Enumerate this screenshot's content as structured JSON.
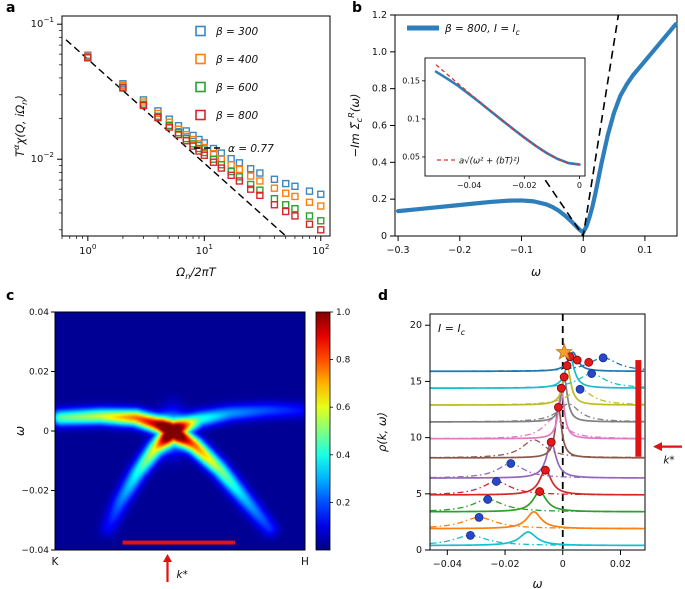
{
  "panel_labels": {
    "a": "a",
    "b": "b",
    "c": "c",
    "d": "d"
  },
  "chart_data": [
    {
      "id": "a",
      "type": "scatter",
      "xscale": "log",
      "yscale": "log",
      "xlim": [
        0.6,
        120
      ],
      "ylim": [
        0.0027,
        0.115
      ],
      "xtick_exponents": [
        0,
        1,
        2
      ],
      "ytick_exponents": [
        -1,
        -2
      ],
      "xlabel_parts": [
        {
          "t": "Ω"
        },
        {
          "t": "n",
          "sub": 1
        },
        {
          "t": "/2πT"
        }
      ],
      "ylabel_parts": [
        {
          "t": "T"
        },
        {
          "t": "α",
          "sup": 1
        },
        {
          "t": "χ(Q, iΩ"
        },
        {
          "t": "n",
          "sub": 1
        },
        {
          "t": ")"
        }
      ],
      "x": [
        1,
        2,
        3,
        4,
        5,
        6,
        7,
        8,
        9,
        10,
        12,
        14,
        17,
        20,
        25,
        30,
        40,
        50,
        60,
        80,
        100
      ],
      "series": [
        {
          "name": "β = 300",
          "color": "#3a87c2",
          "marker": "square-open",
          "values": [
            0.0589,
            0.0362,
            0.0275,
            0.0228,
            0.0198,
            0.0177,
            0.0162,
            0.015,
            0.014,
            0.0132,
            0.012,
            0.0111,
            0.0101,
            0.0094,
            0.0085,
            0.0079,
            0.0071,
            0.0066,
            0.0063,
            0.0058,
            0.0055
          ]
        },
        {
          "name": "β = 400",
          "color": "#ff7f0e",
          "marker": "square-open",
          "values": [
            0.0579,
            0.0352,
            0.0265,
            0.0218,
            0.0188,
            0.0167,
            0.0152,
            0.014,
            0.013,
            0.0122,
            0.011,
            0.0101,
            0.0091,
            0.0084,
            0.0075,
            0.0069,
            0.0061,
            0.0056,
            0.0053,
            0.0048,
            0.0045
          ]
        },
        {
          "name": "β = 600",
          "color": "#2ca02c",
          "marker": "square-open",
          "values": [
            0.0569,
            0.0342,
            0.0255,
            0.0208,
            0.0178,
            0.0157,
            0.0142,
            0.013,
            0.012,
            0.0112,
            0.01,
            0.0091,
            0.0081,
            0.0074,
            0.0065,
            0.0059,
            0.0051,
            0.0046,
            0.0043,
            0.0038,
            0.0035
          ]
        },
        {
          "name": "β = 800",
          "color": "#d62728",
          "marker": "square-open",
          "values": [
            0.0564,
            0.0337,
            0.025,
            0.0203,
            0.0173,
            0.0152,
            0.0137,
            0.0125,
            0.0115,
            0.0107,
            0.0095,
            0.0086,
            0.0076,
            0.0069,
            0.006,
            0.0054,
            0.0046,
            0.0041,
            0.0038,
            0.0033,
            0.003
          ]
        }
      ],
      "fit": {
        "label": "α = 0.77",
        "color": "#000000",
        "amplitude": 0.055,
        "exponent": -0.77,
        "x_range": [
          0.65,
          90
        ]
      }
    },
    {
      "id": "b",
      "type": "line",
      "xlim": [
        -0.305,
        0.152
      ],
      "ylim": [
        0,
        1.2
      ],
      "xticks": [
        -0.3,
        -0.2,
        -0.1,
        0,
        0.1
      ],
      "xtick_labels": [
        "−0.3",
        "−0.2",
        "−0.1",
        "0",
        "0.1"
      ],
      "yticks": [
        0,
        0.2,
        0.4,
        0.6,
        0.8,
        1.0,
        1.2
      ],
      "ytick_labels": [
        "0",
        "0.2",
        "0.4",
        "0.6",
        "0.8",
        "1.0",
        "1.2"
      ],
      "xlabel_parts": [
        {
          "t": "ω"
        }
      ],
      "ylabel_parts": [
        {
          "t": "−Im Σ̃"
        },
        {
          "t": "c",
          "sub": 1
        },
        {
          "t": "R",
          "sup": 1
        },
        {
          "t": "(ω)"
        }
      ],
      "legend_parts": [
        {
          "t": "β = 800, I = I"
        },
        {
          "t": "c",
          "sub": 1
        }
      ],
      "main_color": "#2e7ebc",
      "main": {
        "x": [
          -0.3,
          -0.27,
          -0.24,
          -0.21,
          -0.18,
          -0.15,
          -0.12,
          -0.1,
          -0.08,
          -0.06,
          -0.05,
          -0.04,
          -0.03,
          -0.02,
          -0.015,
          -0.01,
          -0.005,
          0,
          0.005,
          0.01,
          0.015,
          0.02,
          0.03,
          0.04,
          0.05,
          0.06,
          0.07,
          0.08,
          0.1,
          0.12,
          0.14,
          0.15
        ],
        "y": [
          0.135,
          0.145,
          0.155,
          0.165,
          0.175,
          0.185,
          0.192,
          0.193,
          0.188,
          0.172,
          0.158,
          0.138,
          0.112,
          0.082,
          0.065,
          0.048,
          0.032,
          0.02,
          0.05,
          0.1,
          0.16,
          0.235,
          0.4,
          0.55,
          0.67,
          0.76,
          0.82,
          0.87,
          0.95,
          1.03,
          1.11,
          1.15
        ]
      },
      "dashed": {
        "color": "#000000",
        "x": [
          -0.085,
          0,
          0.057
        ],
        "y": [
          0.42,
          0,
          1.2
        ]
      },
      "inset": {
        "xlim": [
          -0.056,
          0.002
        ],
        "ylim": [
          0.025,
          0.18
        ],
        "xticks": [
          -0.04,
          -0.02,
          0
        ],
        "xtick_labels": [
          "−0.04",
          "−0.02",
          "0"
        ],
        "yticks": [
          0.05,
          0.1,
          0.15
        ],
        "ytick_labels": [
          "0.05",
          "0.1",
          "0.15"
        ],
        "label": "a√(ω² + (bT)²)",
        "red_color": "#e03131",
        "blue": {
          "x": [
            -0.052,
            -0.048,
            -0.044,
            -0.04,
            -0.036,
            -0.032,
            -0.028,
            -0.024,
            -0.02,
            -0.016,
            -0.012,
            -0.008,
            -0.004,
            0
          ],
          "y": [
            0.162,
            0.153,
            0.1435,
            0.1325,
            0.1212,
            0.1096,
            0.098,
            0.0866,
            0.0755,
            0.065,
            0.0554,
            0.0475,
            0.042,
            0.04
          ]
        },
        "red": {
          "x": [
            -0.052,
            -0.048,
            -0.044,
            -0.04,
            -0.036,
            -0.032,
            -0.028,
            -0.024,
            -0.02,
            -0.016,
            -0.012,
            -0.008,
            -0.004,
            0
          ],
          "y": [
            0.1711,
            0.1587,
            0.1463,
            0.1341,
            0.122,
            0.1099,
            0.0981,
            0.0866,
            0.0755,
            0.065,
            0.0554,
            0.0475,
            0.042,
            0.04
          ]
        }
      }
    },
    {
      "id": "c",
      "type": "heatmap",
      "ylim": [
        -0.04,
        0.04
      ],
      "yticks": [
        -0.04,
        -0.02,
        0,
        0.02,
        0.04
      ],
      "ytick_labels": [
        "−0.04",
        "−0.02",
        "0",
        "0.02",
        "0.04"
      ],
      "x_left_label": "K",
      "x_right_label": "H",
      "ylabel_parts": [
        {
          "t": "ω"
        }
      ],
      "colorbar_ticks": [
        0.2,
        0.4,
        0.6,
        0.8,
        1.0
      ],
      "colorbar_labels": [
        "0.2",
        "0.4",
        "0.6",
        "0.8",
        "1.0"
      ],
      "background_level": 0.02,
      "band_sigma": 0.024,
      "branches": [
        {
          "pts": [
            [
              0.02,
              0.0045
            ],
            [
              0.18,
              0.005
            ],
            [
              0.32,
              0.0045
            ],
            [
              0.42,
              0.002
            ],
            [
              0.47,
              0
            ]
          ],
          "int": [
            0.45,
            0.55,
            0.75,
            0.95,
            1.0
          ]
        },
        {
          "pts": [
            [
              0.47,
              0
            ],
            [
              0.56,
              -0.005
            ],
            [
              0.66,
              -0.013
            ],
            [
              0.76,
              -0.023
            ],
            [
              0.86,
              -0.033
            ]
          ],
          "int": [
            1.0,
            0.75,
            0.5,
            0.3,
            0.15
          ]
        },
        {
          "pts": [
            [
              0.47,
              0
            ],
            [
              0.4,
              -0.006
            ],
            [
              0.33,
              -0.014
            ],
            [
              0.26,
              -0.024
            ],
            [
              0.21,
              -0.033
            ]
          ],
          "int": [
            1.0,
            0.6,
            0.38,
            0.22,
            0.1
          ]
        },
        {
          "pts": [
            [
              0.47,
              0
            ],
            [
              0.58,
              0.004
            ],
            [
              0.7,
              0.006
            ],
            [
              0.85,
              0.007
            ],
            [
              0.98,
              0.007
            ]
          ],
          "int": [
            1.0,
            0.4,
            0.26,
            0.18,
            0.12
          ]
        }
      ],
      "hotspot": {
        "x": 0.47,
        "amp": 0.35,
        "sx": 0.035,
        "sy": 0.06
      },
      "red_bar": {
        "x0": 0.27,
        "x1": 0.72,
        "omega": -0.0375
      },
      "kstar_label": "k*"
    },
    {
      "id": "d",
      "type": "line-waterfall",
      "xlim": [
        -0.046,
        0.0285
      ],
      "ylim": [
        0,
        21
      ],
      "xticks": [
        -0.04,
        -0.02,
        0,
        0.02
      ],
      "xtick_labels": [
        "−0.04",
        "−0.02",
        "0",
        "0.02"
      ],
      "yticks": [
        0,
        5,
        10,
        15,
        20
      ],
      "ytick_labels": [
        "0",
        "5",
        "10",
        "15",
        "20"
      ],
      "xlabel_parts": [
        {
          "t": "ω"
        }
      ],
      "ylabel_parts": [
        {
          "t": "ρ(k, ω)"
        }
      ],
      "annotation_parts": [
        {
          "t": "I = I"
        },
        {
          "t": "c",
          "sub": 1
        }
      ],
      "zero_line_x": 0,
      "curves": [
        {
          "color": "#17becf",
          "offset": 0.4,
          "solid": {
            "c": -0.012,
            "w": 0.0035,
            "a": 1.2
          },
          "dd": {
            "c": -0.032,
            "w": 0.007,
            "a": 0.9
          }
        },
        {
          "color": "#ff7f0e",
          "offset": 1.9,
          "solid": {
            "c": -0.01,
            "w": 0.003,
            "a": 1.5
          },
          "dd": {
            "c": -0.029,
            "w": 0.007,
            "a": 1.0
          }
        },
        {
          "color": "#2ca02c",
          "offset": 3.4,
          "solid": {
            "c": -0.008,
            "w": 0.0028,
            "a": 1.8
          },
          "dd": {
            "c": -0.026,
            "w": 0.0065,
            "a": 1.1
          }
        },
        {
          "color": "#d62728",
          "offset": 4.9,
          "solid": {
            "c": -0.006,
            "w": 0.0025,
            "a": 2.2
          },
          "dd": {
            "c": -0.023,
            "w": 0.006,
            "a": 1.2
          }
        },
        {
          "color": "#9467bd",
          "offset": 6.4,
          "solid": {
            "c": -0.004,
            "w": 0.002,
            "a": 3.2
          },
          "dd": {
            "c": -0.018,
            "w": 0.0055,
            "a": 1.3
          }
        },
        {
          "color": "#8c564b",
          "offset": 8.2,
          "solid": {
            "c": -0.0015,
            "w": 0.0013,
            "a": 4.5
          },
          "dd": {
            "c": -0.01,
            "w": 0.005,
            "a": 1.6
          }
        },
        {
          "color": "#e377c2",
          "offset": 9.9,
          "solid": {
            "c": -0.0005,
            "w": 0.0012,
            "a": 4.5
          },
          "dd": {
            "c": -0.003,
            "w": 0.0045,
            "a": 1.8
          }
        },
        {
          "color": "#7f7f7f",
          "offset": 11.4,
          "solid": {
            "c": 0.0005,
            "w": 0.0013,
            "a": 4.0
          },
          "dd": {
            "c": 0.002,
            "w": 0.0045,
            "a": 1.6
          }
        },
        {
          "color": "#bcbd22",
          "offset": 12.9,
          "solid": {
            "c": 0.0015,
            "w": 0.0015,
            "a": 3.5
          },
          "dd": {
            "c": 0.006,
            "w": 0.005,
            "a": 1.4
          }
        },
        {
          "color": "#17becf",
          "offset": 14.4,
          "solid": {
            "c": 0.0025,
            "w": 0.0018,
            "a": 2.8
          },
          "dd": {
            "c": 0.01,
            "w": 0.0055,
            "a": 1.3
          }
        },
        {
          "color": "#1f77b4",
          "offset": 15.9,
          "solid": {
            "c": 0.0035,
            "w": 0.002,
            "a": 1.7
          },
          "dd": {
            "c": 0.014,
            "w": 0.006,
            "a": 1.2
          }
        }
      ],
      "blue_dots": [
        [
          -0.032,
          1.3
        ],
        [
          -0.029,
          2.9
        ],
        [
          -0.026,
          4.5
        ],
        [
          -0.023,
          6.1
        ],
        [
          -0.018,
          7.7
        ],
        [
          0.006,
          14.3
        ],
        [
          0.01,
          15.7
        ],
        [
          0.014,
          17.1
        ]
      ],
      "red_dots": [
        [
          -0.008,
          5.2
        ],
        [
          -0.006,
          7.1
        ],
        [
          -0.004,
          9.6
        ],
        [
          -0.0015,
          12.7
        ],
        [
          -0.0005,
          14.4
        ],
        [
          0.0005,
          15.4
        ],
        [
          0.0015,
          16.4
        ],
        [
          0.0025,
          17.2
        ],
        [
          0.005,
          16.9
        ],
        [
          0.009,
          16.7
        ]
      ],
      "star": {
        "x": 0.0005,
        "y": 17.6,
        "color": "#f0a132"
      },
      "red_bar": {
        "x": 0.0262,
        "y0": 8.3,
        "y1": 16.9
      },
      "kstar_label": "k*"
    }
  ]
}
